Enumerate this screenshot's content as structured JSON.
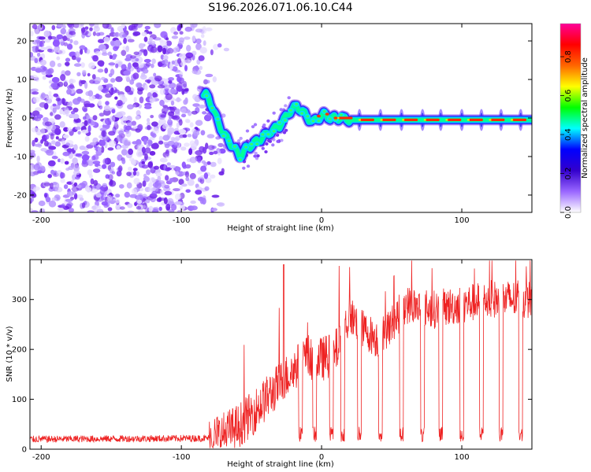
{
  "title": "S196.2026.071.06.10.C44",
  "chart_data": [
    {
      "type": "heatmap",
      "id": "spectrogram",
      "xlabel": "Height of straight line (km)",
      "ylabel": "Frequency (Hz)",
      "xlim": [
        -208,
        150
      ],
      "ylim": [
        -24.5,
        24.5
      ],
      "xticks": [
        -200,
        -100,
        0,
        100
      ],
      "yticks": [
        -20,
        -10,
        0,
        10,
        20
      ],
      "colorbar": {
        "label": "Normalized spectral amplitude",
        "range": [
          0,
          0.97
        ],
        "ticks": [
          "0.0",
          "0.2",
          "0.4",
          "0.6",
          "0.8"
        ],
        "colors": [
          "#ffffff",
          "#9966ff",
          "#3300cc",
          "#0000ff",
          "#00ffff",
          "#00ff00",
          "#ffff00",
          "#ff6600",
          "#ff0000",
          "#ff0099"
        ]
      },
      "ridge": {
        "x": [
          -82,
          -78,
          -74,
          -70,
          -66,
          -62,
          -58,
          -54,
          -50,
          -46,
          -42,
          -38,
          -34,
          -30,
          -26,
          -22,
          -18,
          -14,
          -10,
          -6,
          -2,
          2,
          6,
          10,
          14,
          20,
          30,
          50,
          80,
          110,
          150
        ],
        "freq": [
          6,
          3,
          -1,
          -4,
          -6,
          -8,
          -10,
          -8,
          -7,
          -6,
          -5,
          -4,
          -3,
          -2,
          0,
          2,
          3,
          2,
          0,
          -1,
          0,
          1,
          0,
          0,
          0,
          -0.5,
          -0.5,
          -0.5,
          -0.5,
          -0.5,
          -0.5
        ]
      },
      "noise_region_x": [
        -208,
        -70
      ]
    },
    {
      "type": "line",
      "id": "snr",
      "xlabel": "Height of straight line (km)",
      "ylabel": "SNR (10 * v/v)",
      "xlim": [
        -208,
        150
      ],
      "ylim": [
        0,
        380
      ],
      "xticks": [
        -200,
        -100,
        0,
        100
      ],
      "yticks": [
        0,
        100,
        200,
        300
      ],
      "color": "#ee2222",
      "envelope": {
        "x": [
          -208,
          -80,
          -70,
          -60,
          -50,
          -40,
          -30,
          -20,
          -10,
          0,
          10,
          20,
          30,
          40,
          50,
          60,
          80,
          100,
          120,
          150
        ],
        "y": [
          20,
          22,
          30,
          45,
          70,
          100,
          130,
          160,
          185,
          180,
          195,
          270,
          240,
          220,
          250,
          290,
          280,
          290,
          300,
          300
        ]
      },
      "dropouts_x": [
        -15,
        -5,
        7,
        15,
        27,
        42,
        57,
        72,
        85,
        100,
        114,
        128,
        142
      ]
    }
  ]
}
